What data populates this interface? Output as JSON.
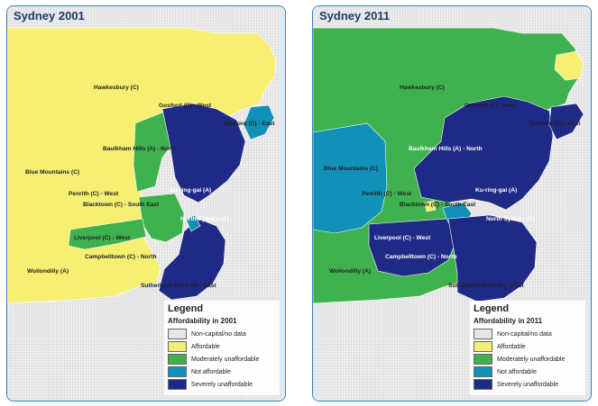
{
  "colors": {
    "no_data": "#e6e6e6",
    "affordable": "#f6ef72",
    "moderately_unaffordable": "#3fb24f",
    "not_affordable": "#1190b8",
    "severely_unaffordable": "#1f2a86",
    "border": "#2b86c5"
  },
  "legend": {
    "title": "Legend",
    "categories": [
      {
        "label": "Non-capital/no data",
        "color": "#e6e6e6"
      },
      {
        "label": "Affordable",
        "color": "#f6ef72"
      },
      {
        "label": "Moderately unaffordable",
        "color": "#3fb24f"
      },
      {
        "label": "Not affordable",
        "color": "#1190b8"
      },
      {
        "label": "Severely unaffordable",
        "color": "#1f2a86"
      }
    ]
  },
  "maps": [
    {
      "title": "Sydney 2001",
      "legend_subtitle": "Affordability in 2001",
      "regions": [
        {
          "label": "Hawkesbury (C)",
          "class": "affordable"
        },
        {
          "label": "Gosford (C) - West",
          "class": "affordable"
        },
        {
          "label": "Gosford (C) - East",
          "class": "not_affordable"
        },
        {
          "label": "Baulkham Hills (A) - North",
          "class": "severely_unaffordable"
        },
        {
          "label": "Blue Mountains (C)",
          "class": "affordable"
        },
        {
          "label": "Ku-ring-gai (A)",
          "class": "severely_unaffordable"
        },
        {
          "label": "Penrith (C) - West",
          "class": "affordable"
        },
        {
          "label": "Blacktown (C) - South East",
          "class": "moderately_unaffordable"
        },
        {
          "label": "North Sydney (A)",
          "class": "severely_unaffordable"
        },
        {
          "label": "Liverpool (C) - West",
          "class": "moderately_unaffordable"
        },
        {
          "label": "Campbelltown (C) - North",
          "class": "affordable"
        },
        {
          "label": "Wollondilly (A)",
          "class": "affordable"
        },
        {
          "label": "Sutherland Shire (A) - East",
          "class": "severely_unaffordable"
        }
      ]
    },
    {
      "title": "Sydney 2011",
      "legend_subtitle": "Affordability in 2011",
      "regions": [
        {
          "label": "Hawkesbury (C)",
          "class": "moderately_unaffordable"
        },
        {
          "label": "Gosford (C) - West",
          "class": "moderately_unaffordable"
        },
        {
          "label": "Gosford (C) - East",
          "class": "severely_unaffordable"
        },
        {
          "label": "Baulkham Hills (A) - North",
          "class": "severely_unaffordable"
        },
        {
          "label": "Blue Mountains (C)",
          "class": "not_affordable"
        },
        {
          "label": "Ku-ring-gai (A)",
          "class": "severely_unaffordable"
        },
        {
          "label": "Penrith (C) - West",
          "class": "moderately_unaffordable"
        },
        {
          "label": "Blacktown (C) - South East",
          "class": "moderately_unaffordable"
        },
        {
          "label": "North Sydney (A)",
          "class": "severely_unaffordable"
        },
        {
          "label": "Liverpool (C) - West",
          "class": "severely_unaffordable"
        },
        {
          "label": "Campbelltown (C) - North",
          "class": "severely_unaffordable"
        },
        {
          "label": "Wollondilly (A)",
          "class": "moderately_unaffordable"
        },
        {
          "label": "Sutherland Shire (A) - East",
          "class": "severely_unaffordable"
        }
      ]
    }
  ]
}
